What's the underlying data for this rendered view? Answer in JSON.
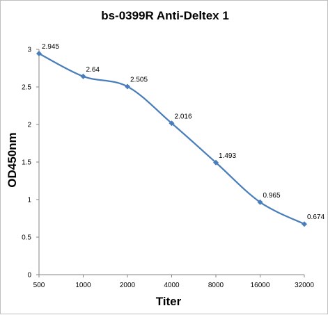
{
  "chart_data": {
    "type": "line",
    "title": "bs-0399R Anti-Deltex 1",
    "xlabel": "Titer",
    "ylabel": "OD450nm",
    "categories": [
      "500",
      "1000",
      "2000",
      "4000",
      "8000",
      "16000",
      "32000"
    ],
    "series": [
      {
        "values": [
          2.945,
          2.64,
          2.505,
          2.016,
          1.493,
          0.965,
          0.674
        ],
        "labels": [
          "2.945",
          "2.64",
          "2.505",
          "2.016",
          "1.493",
          "0.965",
          "0.674"
        ],
        "color": "#4a7ebb"
      }
    ],
    "ylim": [
      0,
      3
    ],
    "yticks": [
      "0",
      "0.5",
      "1",
      "1.5",
      "2",
      "2.5",
      "3"
    ],
    "grid": false,
    "legend": "none",
    "smooth": true,
    "marker": "diamond"
  }
}
